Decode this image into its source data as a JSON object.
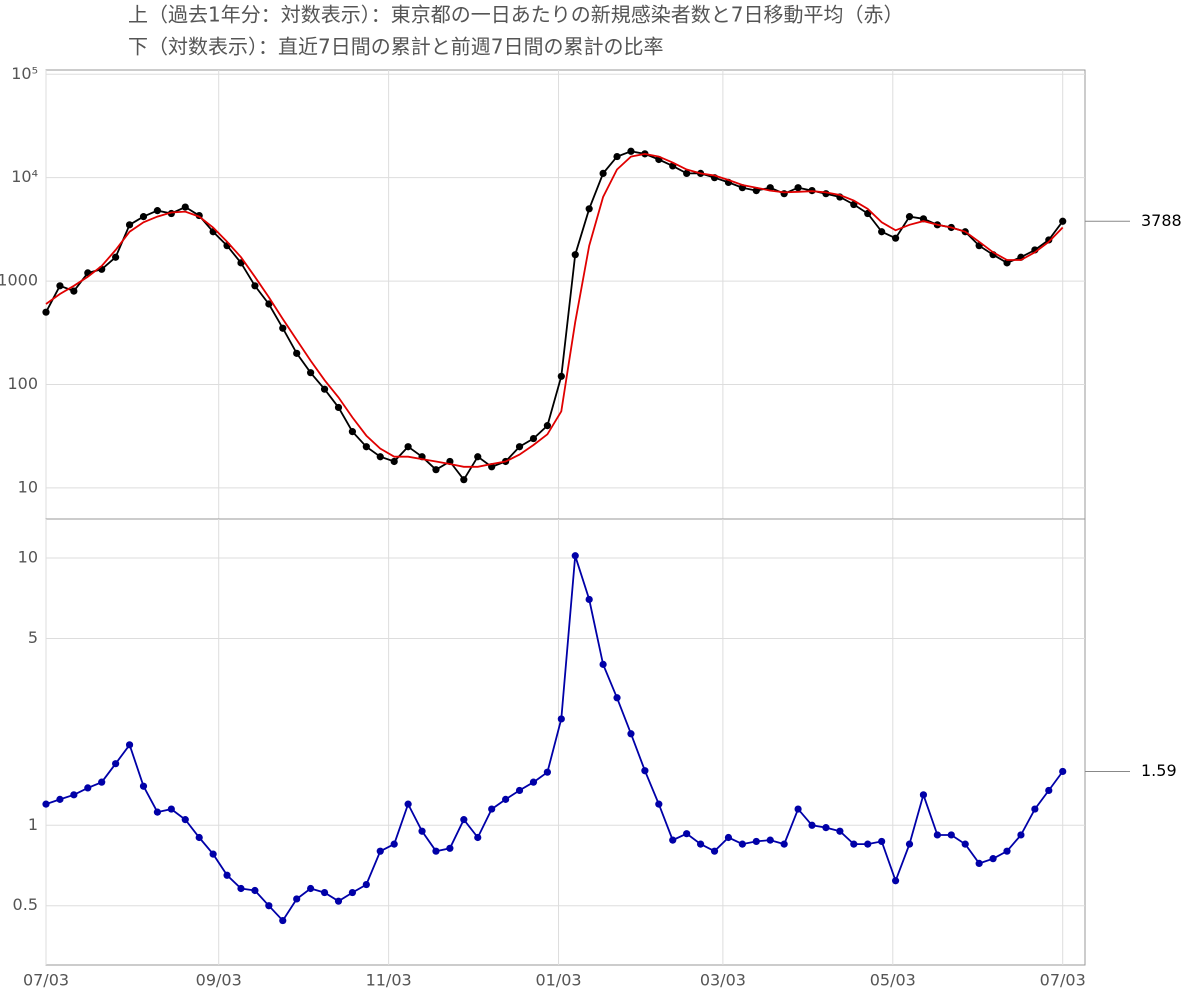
{
  "chart_data": [
    {
      "type": "line",
      "title": "上（過去1年分：対数表示）：東京都の一日あたりの新規感染者数と7日移動平均（赤）",
      "log_y": true,
      "grid": true,
      "x": [
        0,
        5,
        10,
        15,
        20,
        25,
        30,
        35,
        40,
        45,
        50,
        55,
        60,
        65,
        70,
        75,
        80,
        85,
        90,
        95,
        100,
        105,
        110,
        115,
        120,
        125,
        130,
        135,
        140,
        145,
        150,
        155,
        160,
        165,
        170,
        175,
        180,
        185,
        190,
        195,
        200,
        205,
        210,
        215,
        220,
        225,
        230,
        235,
        240,
        245,
        250,
        255,
        260,
        265,
        270,
        275,
        280,
        285,
        290,
        295,
        300,
        305,
        310,
        315,
        320,
        325,
        330,
        335,
        340,
        345,
        350,
        355,
        360,
        365
      ],
      "xlim": [
        0,
        373
      ],
      "xticks": [
        0,
        62,
        123,
        184,
        243,
        304,
        365
      ],
      "ylim": [
        5,
        110000
      ],
      "yticks": [
        10,
        100,
        1000,
        {
          "value": 10000,
          "label": "10⁴"
        },
        {
          "value": 100000,
          "label": "10⁵"
        }
      ],
      "series": [
        {
          "color": "#000000",
          "markers": true,
          "values": [
            500,
            900,
            800,
            1200,
            1300,
            1700,
            3500,
            4200,
            4800,
            4500,
            5200,
            4300,
            3000,
            2200,
            1500,
            900,
            600,
            350,
            200,
            130,
            90,
            60,
            35,
            25,
            20,
            18,
            25,
            20,
            15,
            18,
            12,
            20,
            16,
            18,
            25,
            30,
            40,
            120,
            1800,
            5000,
            11000,
            16000,
            18000,
            17000,
            15000,
            13000,
            11000,
            11000,
            10000,
            9000,
            8000,
            7500,
            8000,
            7000,
            8000,
            7500,
            7000,
            6500,
            5500,
            4500,
            3000,
            2600,
            4200,
            4000,
            3500,
            3300,
            3000,
            2200,
            1800,
            1500,
            1700,
            2000,
            2500,
            3788
          ]
        },
        {
          "color": "#e00000",
          "markers": false,
          "values": [
            600,
            750,
            900,
            1100,
            1400,
            2000,
            3000,
            3700,
            4200,
            4600,
            4700,
            4200,
            3300,
            2400,
            1700,
            1100,
            700,
            430,
            270,
            170,
            110,
            75,
            48,
            32,
            24,
            20,
            20,
            19,
            18,
            17,
            16,
            16,
            17,
            18,
            21,
            26,
            33,
            55,
            400,
            2200,
            6500,
            12000,
            16000,
            17000,
            16000,
            14000,
            12000,
            11000,
            10500,
            9500,
            8500,
            8000,
            7500,
            7200,
            7300,
            7400,
            7200,
            6800,
            6000,
            5000,
            3700,
            3100,
            3500,
            3800,
            3500,
            3300,
            3000,
            2400,
            1900,
            1600,
            1600,
            1900,
            2400,
            3300
          ]
        }
      ],
      "annotations": [
        {
          "text": "3788",
          "y": 3788
        }
      ]
    },
    {
      "type": "line",
      "title": "下（対数表示）：直近7日間の累計と前週7日間の累計の比率",
      "log_y": true,
      "grid": true,
      "x": [
        0,
        5,
        10,
        15,
        20,
        25,
        30,
        35,
        40,
        45,
        50,
        55,
        60,
        65,
        70,
        75,
        80,
        85,
        90,
        95,
        100,
        105,
        110,
        115,
        120,
        125,
        130,
        135,
        140,
        145,
        150,
        155,
        160,
        165,
        170,
        175,
        180,
        185,
        190,
        195,
        200,
        205,
        210,
        215,
        220,
        225,
        230,
        235,
        240,
        245,
        250,
        255,
        260,
        265,
        270,
        275,
        280,
        285,
        290,
        295,
        300,
        305,
        310,
        315,
        320,
        325,
        330,
        335,
        340,
        345,
        350,
        355,
        360,
        365
      ],
      "xlim": [
        0,
        373
      ],
      "xticks": [
        {
          "value": 0,
          "label": "07/03"
        },
        {
          "value": 62,
          "label": "09/03"
        },
        {
          "value": 123,
          "label": "11/03"
        },
        {
          "value": 184,
          "label": "01/03"
        },
        {
          "value": 243,
          "label": "03/03"
        },
        {
          "value": 304,
          "label": "05/03"
        },
        {
          "value": 365,
          "label": "07/03"
        }
      ],
      "ylim": [
        0.3,
        14
      ],
      "yticks": [
        0.5,
        1,
        5,
        10
      ],
      "series": [
        {
          "color": "#0000a8",
          "markers": true,
          "values": [
            1.2,
            1.25,
            1.3,
            1.38,
            1.45,
            1.7,
            2.0,
            1.4,
            1.12,
            1.15,
            1.05,
            0.9,
            0.78,
            0.65,
            0.58,
            0.57,
            0.5,
            0.44,
            0.53,
            0.58,
            0.56,
            0.52,
            0.56,
            0.6,
            0.8,
            0.85,
            1.2,
            0.95,
            0.8,
            0.82,
            1.05,
            0.9,
            1.15,
            1.25,
            1.35,
            1.45,
            1.58,
            2.5,
            10.2,
            7.0,
            4.0,
            3.0,
            2.2,
            1.6,
            1.2,
            0.88,
            0.93,
            0.85,
            0.8,
            0.9,
            0.85,
            0.87,
            0.88,
            0.85,
            1.15,
            1.0,
            0.98,
            0.95,
            0.85,
            0.85,
            0.87,
            0.62,
            0.85,
            1.3,
            0.92,
            0.92,
            0.85,
            0.72,
            0.75,
            0.8,
            0.92,
            1.15,
            1.35,
            1.59
          ]
        }
      ],
      "annotations": [
        {
          "text": "1.59",
          "y": 1.59
        }
      ]
    }
  ]
}
